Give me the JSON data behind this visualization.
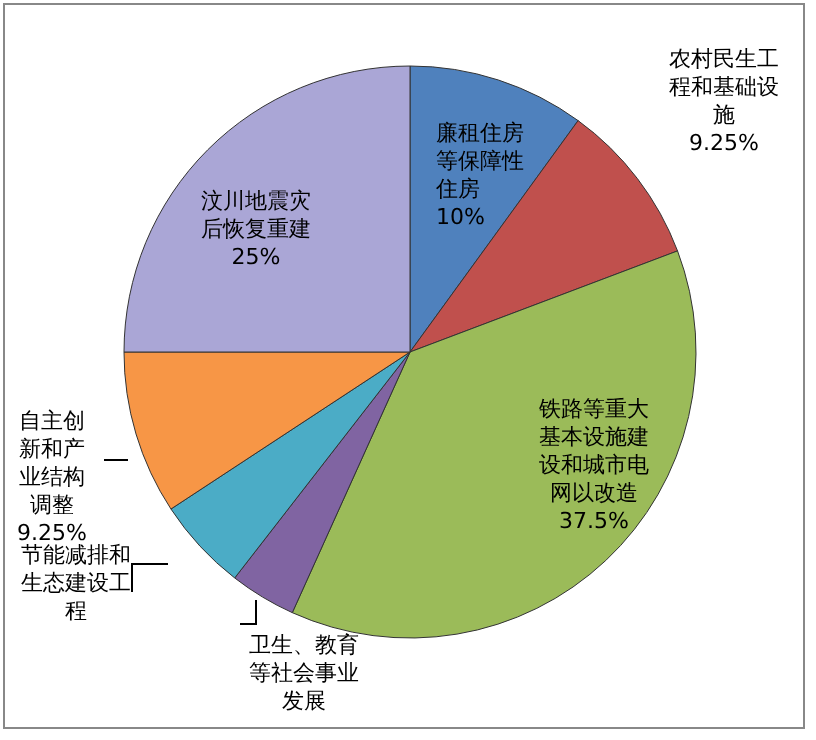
{
  "chart_data": {
    "type": "pie",
    "categories": [
      "廉租住房等保障性住房",
      "农村民生工程和基础设施",
      "铁路等重大基本设施建设和城市电网以改造",
      "卫生、教育等社会事业发展",
      "节能减排和生态建设工程",
      "自主创新和产业结构调整",
      "汶川地震灾后恢复重建"
    ],
    "values": [
      10,
      9.25,
      37.5,
      3.75,
      5.25,
      9.25,
      25
    ],
    "value_labels": [
      "10%",
      "9.25%",
      "37.5%",
      null,
      null,
      "9.25%",
      "25%"
    ],
    "colors": [
      "#4f81bd",
      "#c0504d",
      "#9bbb59",
      "#8064a2",
      "#4bacc6",
      "#f79646",
      "#aaa6d6"
    ]
  }
}
